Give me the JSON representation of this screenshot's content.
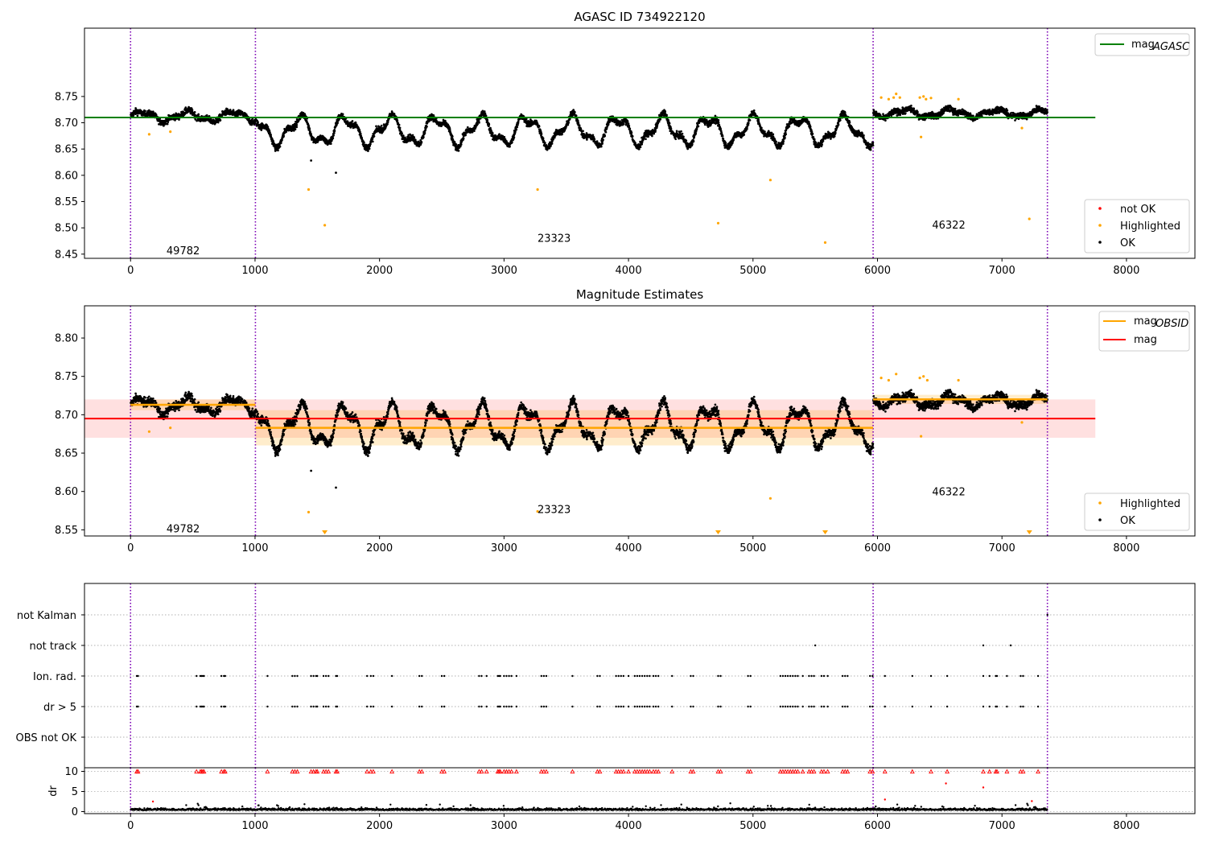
{
  "chart_data": [
    {
      "type": "scatter",
      "title": "AGASC ID 734922120",
      "xlabel": "",
      "ylabel": "",
      "xlim": [
        -370,
        8550
      ],
      "ylim": [
        8.442,
        8.88
      ],
      "x_ticks": [
        "0",
        "1000",
        "2000",
        "3000",
        "4000",
        "5000",
        "6000",
        "7000",
        "8000"
      ],
      "y_ticks": [
        "8.45",
        "8.50",
        "8.55",
        "8.60",
        "8.65",
        "8.70",
        "8.75"
      ],
      "obs_boundaries": [
        0,
        1003,
        5965,
        7365
      ],
      "obs_labels": [
        {
          "text": "49782",
          "x": 500,
          "y": 8.457
        },
        {
          "text": "23323",
          "x": 3480,
          "y": 8.481
        },
        {
          "text": "46322",
          "x": 6650,
          "y": 8.506
        }
      ],
      "lines": [
        {
          "name": "mag",
          "name_sub": "AGASC",
          "y": 8.71,
          "x0": -370,
          "x1": 7750,
          "color": "#008000"
        }
      ],
      "legend_lines": [
        {
          "name": "mag",
          "sub": "AGASC",
          "color": "#008000"
        }
      ],
      "legend_points": [
        {
          "name": "not OK",
          "color": "#ff0000"
        },
        {
          "name": "Highlighted",
          "color": "#ffa500"
        },
        {
          "name": "OK",
          "color": "#000000"
        }
      ],
      "segments": [
        {
          "x0": 0,
          "x1": 1003,
          "base": 8.712,
          "amp": 0.01
        },
        {
          "x0": 1003,
          "x1": 5965,
          "base": 8.685,
          "amp": 0.028
        },
        {
          "x0": 5965,
          "x1": 7365,
          "base": 8.718,
          "amp": 0.008
        }
      ],
      "highlighted_points": [
        [
          150,
          8.678
        ],
        [
          320,
          8.683
        ],
        [
          1430,
          8.573
        ],
        [
          1560,
          8.505
        ],
        [
          3270,
          8.573
        ],
        [
          4720,
          8.509
        ],
        [
          5140,
          8.591
        ],
        [
          5580,
          8.472
        ],
        [
          6030,
          8.748
        ],
        [
          6090,
          8.745
        ],
        [
          6130,
          8.748
        ],
        [
          6150,
          8.755
        ],
        [
          6180,
          8.748
        ],
        [
          6340,
          8.748
        ],
        [
          6350,
          8.673
        ],
        [
          6370,
          8.75
        ],
        [
          6390,
          8.745
        ],
        [
          6430,
          8.747
        ],
        [
          6650,
          8.745
        ],
        [
          7160,
          8.69
        ],
        [
          7220,
          8.517
        ]
      ],
      "not_ok_points": [],
      "outlier_ok_points": [
        [
          1450,
          8.628
        ],
        [
          1650,
          8.605
        ]
      ]
    },
    {
      "type": "scatter",
      "title": "Magnitude Estimates",
      "xlim": [
        -370,
        8550
      ],
      "ylim": [
        8.542,
        8.842
      ],
      "x_ticks": [
        "0",
        "1000",
        "2000",
        "3000",
        "4000",
        "5000",
        "6000",
        "7000",
        "8000"
      ],
      "y_ticks": [
        "8.55",
        "8.60",
        "8.65",
        "8.70",
        "8.75",
        "8.80"
      ],
      "obs_boundaries": [
        0,
        1003,
        5965,
        7365
      ],
      "obs_labels": [
        {
          "text": "49782",
          "x": 500,
          "y": 8.552
        },
        {
          "text": "23323",
          "x": 3480,
          "y": 8.577
        },
        {
          "text": "46322",
          "x": 6650,
          "y": 8.6
        }
      ],
      "mag": {
        "name": "mag",
        "value": 8.695,
        "band": [
          8.67,
          8.72
        ],
        "x0": -370,
        "x1": 7750,
        "color": "#ff0000"
      },
      "mag_obsid": {
        "name": "mag",
        "sub": "OBSID",
        "color": "#ffa500",
        "segments": [
          {
            "x0": 0,
            "x1": 1003,
            "value": 8.713,
            "band": [
              8.706,
              8.72
            ]
          },
          {
            "x0": 1003,
            "x1": 5965,
            "value": 8.683,
            "band": [
              8.66,
              8.706
            ]
          },
          {
            "x0": 5965,
            "x1": 7365,
            "value": 8.72,
            "band": [
              8.714,
              8.726
            ]
          }
        ]
      },
      "legend_lines": [
        {
          "name": "mag",
          "sub": "OBSID",
          "color": "#ffa500"
        },
        {
          "name": "mag",
          "sub": "",
          "color": "#ff0000"
        }
      ],
      "legend_points": [
        {
          "name": "Highlighted",
          "color": "#ffa500"
        },
        {
          "name": "OK",
          "color": "#000000"
        }
      ],
      "highlighted_points": [
        [
          150,
          8.678
        ],
        [
          320,
          8.683
        ],
        [
          1430,
          8.573
        ],
        [
          3270,
          8.574
        ],
        [
          5140,
          8.591
        ],
        [
          6030,
          8.748
        ],
        [
          6090,
          8.745
        ],
        [
          6150,
          8.753
        ],
        [
          6340,
          8.748
        ],
        [
          6350,
          8.672
        ],
        [
          6370,
          8.75
        ],
        [
          6400,
          8.745
        ],
        [
          6650,
          8.745
        ],
        [
          7160,
          8.69
        ]
      ],
      "below_range_markers": [
        1560,
        4720,
        5580,
        7220
      ],
      "outlier_ok_points": [
        [
          1450,
          8.627
        ],
        [
          1650,
          8.605
        ]
      ]
    },
    {
      "type": "scatter",
      "title": "",
      "xlim": [
        -370,
        8550
      ],
      "y_categories": [
        "not Kalman",
        "not track",
        "Ion. rad.",
        "dr > 5",
        "OBS not OK"
      ],
      "obs_boundaries": [
        0,
        1003,
        5965,
        7365
      ],
      "flag_times": [
        50,
        60,
        530,
        560,
        570,
        580,
        590,
        730,
        750,
        760,
        1100,
        1300,
        1320,
        1340,
        1450,
        1470,
        1490,
        1500,
        1550,
        1570,
        1590,
        1650,
        1660,
        1900,
        1930,
        1950,
        2100,
        2320,
        2340,
        2500,
        2520,
        2800,
        2820,
        2860,
        2950,
        2960,
        2970,
        3000,
        3020,
        3040,
        3060,
        3100,
        3300,
        3320,
        3340,
        3550,
        3750,
        3770,
        3900,
        3920,
        3940,
        3960,
        4000,
        4050,
        4070,
        4090,
        4110,
        4130,
        4150,
        4170,
        4200,
        4220,
        4240,
        4350,
        4500,
        4520,
        4720,
        4740,
        4960,
        4980,
        5220,
        5240,
        5260,
        5280,
        5300,
        5320,
        5340,
        5360,
        5400,
        5450,
        5470,
        5490,
        5550,
        5570,
        5600,
        5720,
        5740,
        5760,
        5940,
        5960,
        6060,
        6280,
        6430,
        6560,
        6850,
        6900,
        6950,
        6960,
        7040,
        7150,
        7170,
        7290
      ],
      "not_track_times": [
        5500,
        6850,
        7070
      ],
      "not_kalman_times": [
        7365
      ]
    },
    {
      "type": "scatter",
      "ylabel": "dr",
      "xlim": [
        -370,
        8550
      ],
      "ylim": [
        -0.5,
        10.9
      ],
      "x_ticks": [
        "0",
        "1000",
        "2000",
        "3000",
        "4000",
        "5000",
        "6000",
        "7000",
        "8000"
      ],
      "y_ticks": [
        "0",
        "5",
        "10"
      ],
      "obs_boundaries": [
        0,
        1003,
        5965,
        7365
      ],
      "clip_value": 10,
      "red_points": [
        [
          6550,
          7.0
        ],
        [
          6850,
          6.0
        ],
        [
          6060,
          3.0
        ],
        [
          180,
          2.5
        ],
        [
          7240,
          2.6
        ]
      ]
    }
  ]
}
